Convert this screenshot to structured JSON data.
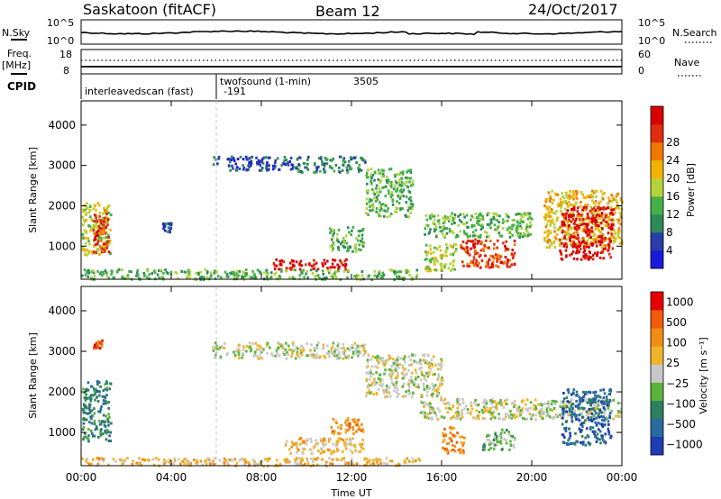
{
  "header": {
    "station": "Saskatoon (fitACF)",
    "beam": "Beam 12",
    "date": "24/Oct/2017"
  },
  "strip": {
    "nsky_label": "N.Sky",
    "nsky_ticks": [
      "10^5",
      "10^0"
    ],
    "nsearch_label": "N.Search",
    "nsearch_ticks": [
      "10^5",
      "10^0"
    ],
    "freq_label": "Freq.",
    "freq_unit": "[MHz]",
    "freq_ticks": [
      "18",
      "8"
    ],
    "nave_label": "Nave",
    "nave_ticks": [
      "60",
      "0"
    ],
    "cpid_label": "CPID",
    "cpid_entries": [
      {
        "name": "interleavedscan (fast)",
        "id": "-191",
        "start_hour": 0
      },
      {
        "name": "twofsound (1-min)",
        "id": "3505",
        "start_hour": 6
      }
    ]
  },
  "chart_data": [
    {
      "type": "heatmap",
      "name": "power",
      "ylabel": "Slant Range [km]",
      "xlabel": "",
      "ylim": [
        180,
        4600
      ],
      "xlim": [
        0,
        24
      ],
      "yticks": [
        "1000",
        "2000",
        "3000",
        "4000"
      ],
      "xticks": [
        "00:00",
        "04:00",
        "08:00",
        "12:00",
        "16:00",
        "20:00",
        "00:00"
      ],
      "colorbar": {
        "label": "Power [dB]",
        "ticks": [
          "4",
          "8",
          "12",
          "16",
          "20",
          "24",
          "28"
        ],
        "colors": [
          "#1a1adc",
          "#2a3da8",
          "#2e8a5a",
          "#46b048",
          "#b4d23c",
          "#f0b400",
          "#f07800",
          "#e02c10",
          "#d80000"
        ]
      },
      "regions": [
        {
          "t0": 0.0,
          "t1": 1.3,
          "r0": 800,
          "r1": 2100,
          "level": 4
        },
        {
          "t0": 0.5,
          "t1": 1.2,
          "r0": 850,
          "r1": 1950,
          "level": 7
        },
        {
          "t0": 3.6,
          "t1": 4.0,
          "r0": 1350,
          "r1": 1600,
          "level": 1
        },
        {
          "t0": 5.8,
          "t1": 9.5,
          "r0": 2900,
          "r1": 3250,
          "level": 1
        },
        {
          "t0": 9.5,
          "t1": 12.6,
          "r0": 2850,
          "r1": 3250,
          "level": 2
        },
        {
          "t0": 12.6,
          "t1": 14.7,
          "r0": 1750,
          "r1": 2950,
          "level": 3
        },
        {
          "t0": 11.0,
          "t1": 12.5,
          "r0": 900,
          "r1": 1500,
          "level": 3
        },
        {
          "t0": 8.4,
          "t1": 11.8,
          "r0": 450,
          "r1": 700,
          "level": 8
        },
        {
          "t0": 15.2,
          "t1": 20.0,
          "r0": 1250,
          "r1": 1850,
          "level": 3
        },
        {
          "t0": 16.8,
          "t1": 19.2,
          "r0": 500,
          "r1": 1200,
          "level": 7
        },
        {
          "t0": 15.2,
          "t1": 16.6,
          "r0": 400,
          "r1": 1100,
          "level": 4
        },
        {
          "t0": 20.5,
          "t1": 24.0,
          "r0": 1000,
          "r1": 2400,
          "level": 5
        },
        {
          "t0": 21.2,
          "t1": 23.6,
          "r0": 700,
          "r1": 2000,
          "level": 8
        },
        {
          "t0": 0.0,
          "t1": 15.0,
          "r0": 200,
          "r1": 450,
          "level": 3
        }
      ]
    },
    {
      "type": "heatmap",
      "name": "velocity",
      "ylabel": "Slant Range [km]",
      "xlabel": "Time UT",
      "ylim": [
        180,
        4600
      ],
      "xlim": [
        0,
        24
      ],
      "yticks": [
        "1000",
        "2000",
        "3000",
        "4000"
      ],
      "xticks": [
        "00:00",
        "04:00",
        "08:00",
        "12:00",
        "16:00",
        "20:00",
        "00:00"
      ],
      "colorbar": {
        "label": "Velocity [m s⁻¹]",
        "ticks": [
          "1000",
          "500",
          "100",
          "25",
          "−25",
          "−100",
          "−500",
          "−1000"
        ],
        "colors": [
          "#1e3cb4",
          "#2a6aa0",
          "#2e8060",
          "#5ab43c",
          "#c8c8c8",
          "#f0b428",
          "#f08c14",
          "#f05a0a",
          "#e60000"
        ]
      },
      "regions": [
        {
          "t0": 0.0,
          "t1": 1.3,
          "r0": 800,
          "r1": 2300,
          "level": 2
        },
        {
          "t0": 0.5,
          "t1": 0.9,
          "r0": 3100,
          "r1": 3300,
          "level": 7
        },
        {
          "t0": 5.8,
          "t1": 12.6,
          "r0": 2850,
          "r1": 3250,
          "level": 4
        },
        {
          "t0": 12.6,
          "t1": 16.0,
          "r0": 1900,
          "r1": 2950,
          "level": 4
        },
        {
          "t0": 15.0,
          "t1": 24.0,
          "r0": 1350,
          "r1": 1850,
          "level": 4
        },
        {
          "t0": 11.0,
          "t1": 12.5,
          "r0": 1000,
          "r1": 1400,
          "level": 6
        },
        {
          "t0": 9.0,
          "t1": 12.5,
          "r0": 500,
          "r1": 900,
          "level": 5
        },
        {
          "t0": 16.0,
          "t1": 17.0,
          "r0": 500,
          "r1": 1150,
          "level": 6
        },
        {
          "t0": 17.8,
          "t1": 19.2,
          "r0": 600,
          "r1": 1100,
          "level": 3
        },
        {
          "t0": 21.3,
          "t1": 23.5,
          "r0": 700,
          "r1": 2100,
          "level": 1
        },
        {
          "t0": 0.0,
          "t1": 15.0,
          "r0": 200,
          "r1": 400,
          "level": 5
        }
      ]
    }
  ]
}
